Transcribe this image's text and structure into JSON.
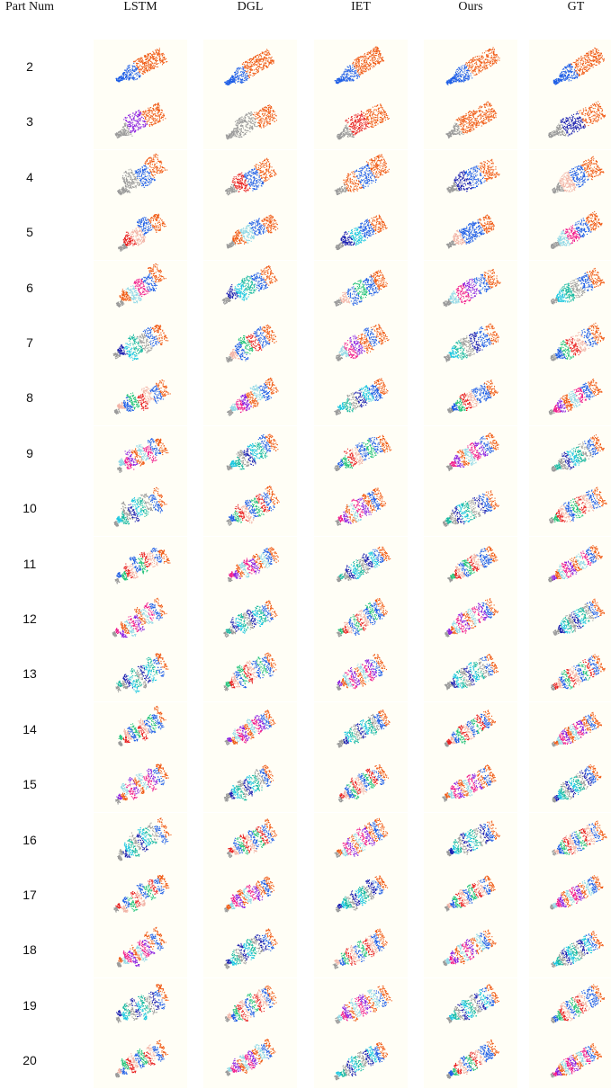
{
  "header": {
    "part_num_label": "Part Num",
    "columns": [
      "LSTM",
      "DGL",
      "IET",
      "Ours",
      "GT"
    ]
  },
  "rows": [
    {
      "part_num": "2"
    },
    {
      "part_num": "3"
    },
    {
      "part_num": "4"
    },
    {
      "part_num": "5"
    },
    {
      "part_num": "6"
    },
    {
      "part_num": "7"
    },
    {
      "part_num": "8"
    },
    {
      "part_num": "9"
    },
    {
      "part_num": "10"
    },
    {
      "part_num": "11"
    },
    {
      "part_num": "12"
    },
    {
      "part_num": "13"
    },
    {
      "part_num": "14"
    },
    {
      "part_num": "15"
    },
    {
      "part_num": "16"
    },
    {
      "part_num": "17"
    },
    {
      "part_num": "18"
    },
    {
      "part_num": "19"
    },
    {
      "part_num": "20"
    }
  ],
  "colors": {
    "orange": "#f05a14",
    "blue": "#1e5ee6",
    "gray": "#9a9a9a",
    "light_blue": "#8fd8e6",
    "green": "#22c47a",
    "navy": "#1a1fb0",
    "pink": "#f01a8c",
    "red": "#e81f1f",
    "cyan": "#19c7e0",
    "purple": "#8a1ee0",
    "salmon": "#f2b3a6",
    "teal": "#16b8a0",
    "cell_background": "#fffef6"
  }
}
